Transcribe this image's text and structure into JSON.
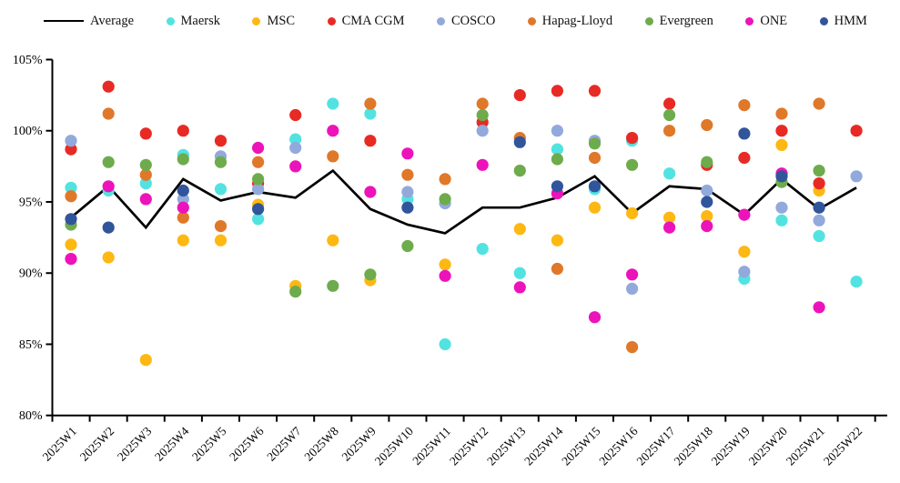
{
  "chart_data": {
    "type": "scatter",
    "title": "",
    "legend_position": "top",
    "grid": false,
    "x_categories": [
      "2025W1",
      "2025W2",
      "2025W3",
      "2025W4",
      "2025W5",
      "2025W6",
      "2025W7",
      "2025W8",
      "2025W9",
      "2025W10",
      "2025W11",
      "2025W12",
      "2025W13",
      "2025W14",
      "2025W15",
      "2025W16",
      "2025W17",
      "2025W18",
      "2025W19",
      "2025W20",
      "2025W21",
      "2025W22"
    ],
    "y_axis": {
      "min": 80,
      "max": 105,
      "step": 5,
      "labels": [
        "80%",
        "85%",
        "90%",
        "95%",
        "100%",
        "105%"
      ]
    },
    "series": [
      {
        "name": "Average",
        "kind": "line",
        "color": "#000000",
        "values": [
          93.9,
          96.1,
          93.2,
          96.6,
          95.1,
          95.7,
          95.3,
          97.2,
          94.5,
          93.4,
          92.8,
          94.6,
          94.6,
          95.3,
          96.8,
          94.2,
          96.1,
          95.9,
          94.1,
          96.6,
          94.5,
          96.0
        ]
      },
      {
        "name": "Maersk",
        "kind": "scatter",
        "color": "#52E3E1",
        "values": [
          96.0,
          95.8,
          96.3,
          98.3,
          95.9,
          93.8,
          99.4,
          101.9,
          101.2,
          95.2,
          85.0,
          91.7,
          90.0,
          98.7,
          95.9,
          99.3,
          97.0,
          null,
          89.6,
          93.7,
          92.6,
          89.4
        ]
      },
      {
        "name": "MSC",
        "kind": "scatter",
        "color": "#FDB813",
        "values": [
          92.0,
          91.1,
          83.9,
          92.3,
          92.3,
          94.8,
          89.1,
          92.3,
          89.5,
          null,
          90.6,
          null,
          93.1,
          92.3,
          94.6,
          94.2,
          93.9,
          94.0,
          91.5,
          99.0,
          95.8,
          null
        ]
      },
      {
        "name": "CMA CGM",
        "kind": "scatter",
        "color": "#E82A25",
        "values": [
          98.7,
          103.1,
          99.8,
          100.0,
          99.3,
          96.3,
          101.1,
          null,
          99.3,
          null,
          null,
          100.6,
          102.5,
          102.8,
          102.8,
          99.5,
          101.9,
          97.6,
          98.1,
          100.0,
          96.3,
          100.0
        ]
      },
      {
        "name": "COSCO",
        "kind": "scatter",
        "color": "#92A9DC",
        "values": [
          99.3,
          null,
          null,
          95.2,
          98.2,
          95.9,
          98.8,
          null,
          null,
          95.7,
          94.9,
          100.0,
          null,
          100.0,
          99.3,
          88.9,
          null,
          95.8,
          90.1,
          94.6,
          93.7,
          96.8
        ]
      },
      {
        "name": "Hapag-Lloyd",
        "kind": "scatter",
        "color": "#E0782A",
        "values": [
          95.4,
          101.2,
          96.9,
          93.9,
          93.3,
          97.8,
          null,
          98.2,
          101.9,
          96.9,
          96.6,
          101.9,
          99.5,
          90.3,
          98.1,
          84.8,
          100.0,
          100.4,
          101.8,
          101.2,
          101.9,
          null
        ]
      },
      {
        "name": "Evergreen",
        "kind": "scatter",
        "color": "#6EAB4D",
        "values": [
          93.4,
          97.8,
          97.6,
          98.0,
          97.8,
          96.6,
          88.7,
          89.1,
          89.9,
          91.9,
          95.2,
          101.1,
          97.2,
          98.0,
          99.1,
          97.6,
          101.1,
          97.8,
          null,
          96.4,
          97.2,
          null
        ]
      },
      {
        "name": "ONE",
        "kind": "scatter",
        "color": "#EC13BB",
        "values": [
          91.0,
          96.1,
          95.2,
          94.6,
          null,
          98.8,
          97.5,
          100.0,
          95.7,
          98.4,
          89.8,
          97.6,
          89.0,
          95.6,
          86.9,
          89.9,
          93.2,
          93.3,
          94.1,
          97.0,
          87.6,
          null
        ]
      },
      {
        "name": "HMM",
        "kind": "scatter",
        "color": "#31559B",
        "values": [
          93.8,
          93.2,
          null,
          95.8,
          null,
          94.5,
          null,
          null,
          null,
          94.6,
          null,
          null,
          99.2,
          96.1,
          96.1,
          null,
          null,
          95.0,
          99.8,
          96.8,
          94.6,
          null
        ]
      }
    ]
  }
}
